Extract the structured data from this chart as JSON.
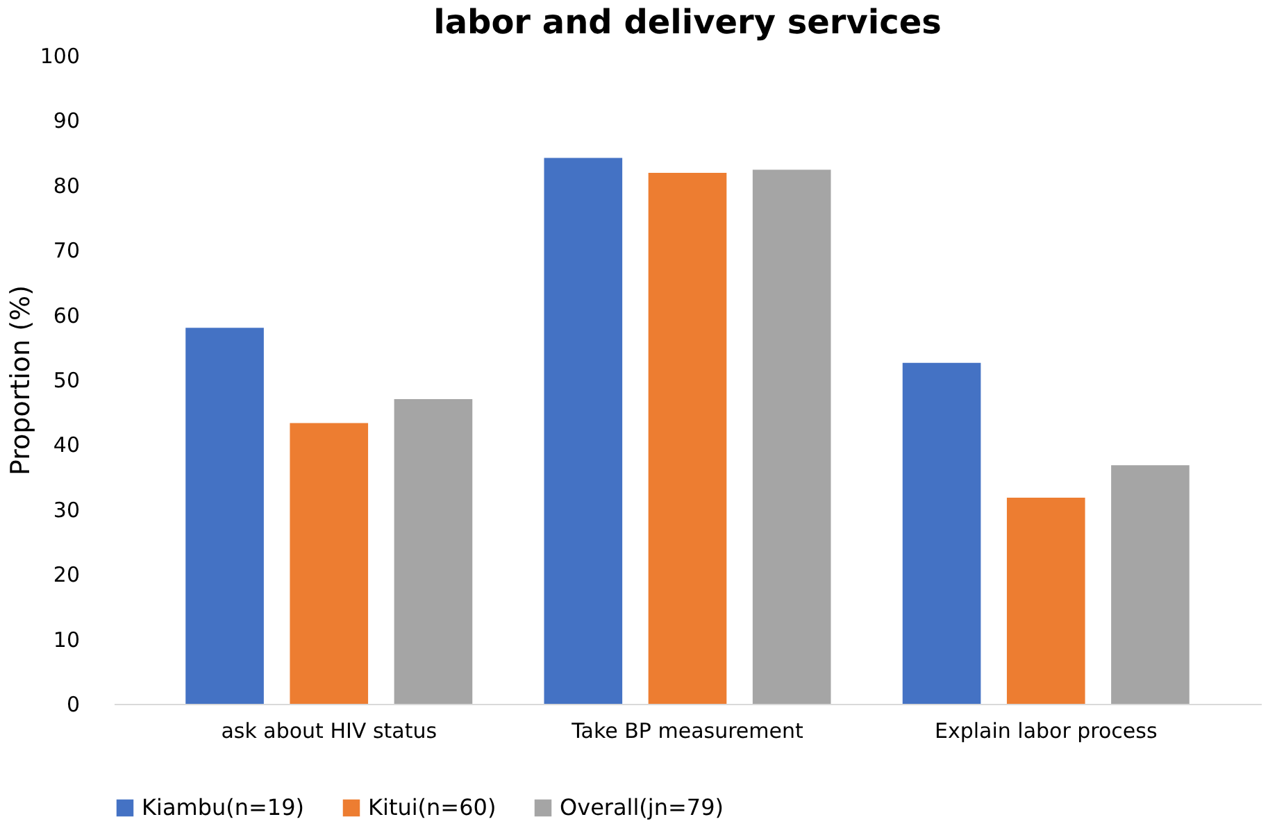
{
  "chart_data": {
    "type": "bar",
    "title": "labor and delivery services",
    "ylabel": "Proportion (%)",
    "categories": [
      "ask about HIV status",
      "Take BP measurement",
      "Explain labor process"
    ],
    "series": [
      {
        "name": "Kiambu(n=19)",
        "color": "#4472c4",
        "values": [
          58.0,
          84.2,
          52.6
        ]
      },
      {
        "name": "Kitui(n=60)",
        "color": "#ed7d31",
        "values": [
          43.3,
          81.9,
          31.8
        ]
      },
      {
        "name": "Overall(jn=79)",
        "color": "#a5a5a5",
        "values": [
          47.0,
          82.4,
          36.8
        ]
      }
    ],
    "ylim": [
      0,
      100
    ],
    "yticks": [
      0,
      10,
      20,
      30,
      40,
      50,
      60,
      70,
      80,
      90,
      100
    ],
    "grid": false,
    "legend": "bottom"
  }
}
